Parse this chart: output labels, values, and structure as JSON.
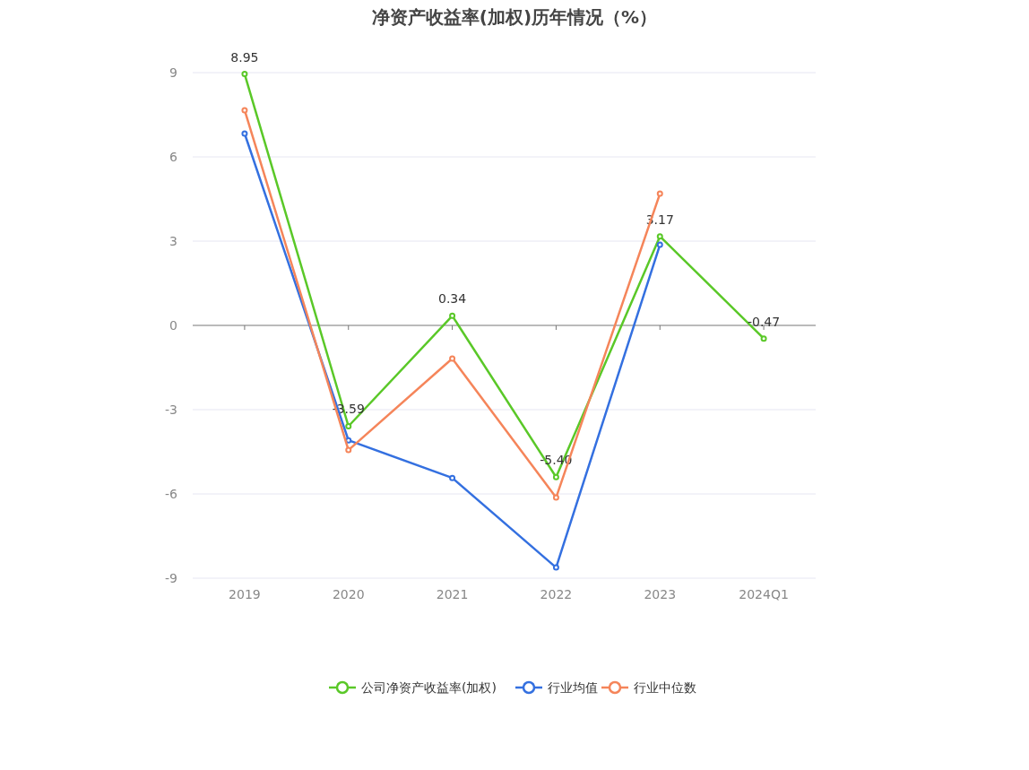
{
  "chart_data": {
    "type": "line",
    "title": "净资产收益率(加权)历年情况（%）",
    "categories": [
      "2019",
      "2020",
      "2021",
      "2022",
      "2023",
      "2024Q1"
    ],
    "ylim": [
      -9,
      9
    ],
    "yticks": [
      -9,
      -6,
      -3,
      0,
      3,
      6,
      9
    ],
    "grid": "y",
    "legend": "bottom",
    "marker": "circle",
    "series": [
      {
        "name": "公司净资产收益率(加权)",
        "color": "#5ac828",
        "values": [
          8.95,
          -3.59,
          0.34,
          -5.4,
          3.17,
          -0.47
        ],
        "value_labels": [
          "8.95",
          "-3.59",
          "0.34",
          "-5.40",
          "3.17",
          "-0.47"
        ]
      },
      {
        "name": "行业均值",
        "color": "#3470e0",
        "values": [
          6.83,
          -4.09,
          -5.43,
          -8.62,
          2.87,
          null
        ]
      },
      {
        "name": "行业中位数",
        "color": "#f5855a",
        "values": [
          7.66,
          -4.44,
          -1.18,
          -6.13,
          4.69,
          null
        ]
      }
    ]
  }
}
